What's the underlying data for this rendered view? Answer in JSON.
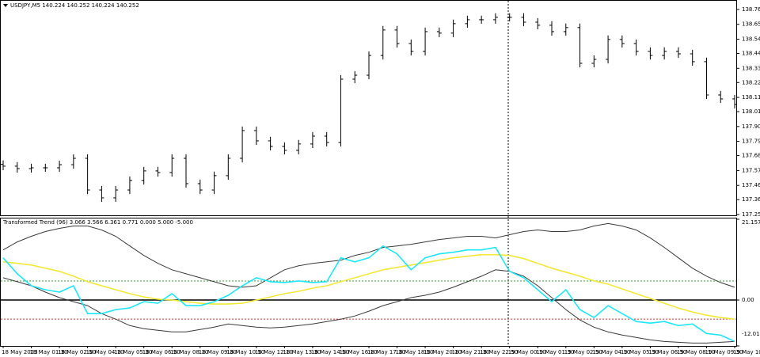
{
  "chart_data": [
    {
      "type": "ohlc",
      "title": "USDJPY,M5  140.224 140.252 140.224 140.252",
      "color": "#000000",
      "categories": [
        "18 May 2023",
        null,
        "18 May 01:30",
        null,
        "18 May 02:50",
        null,
        "18 May 04:10",
        null,
        "18 May 05:30",
        null,
        "18 May 06:50",
        null,
        "18 May 08:10",
        null,
        "18 May 09:30",
        null,
        "18 May 10:50",
        null,
        "18 May 12:10",
        null,
        "18 May 13:30",
        null,
        "18 May 14:50",
        null,
        "18 May 16:10",
        null,
        "18 May 17:30",
        null,
        "18 May 18:50",
        null,
        "18 May 20:10",
        null,
        "18 May 21:30",
        null,
        "18 May 22:50",
        null,
        "19 May 00:10",
        null,
        "19 May 01:30",
        null,
        "19 May 02:50",
        null,
        "19 May 04:10",
        null,
        "19 May 05:30",
        null,
        "19 May 06:50",
        null,
        "19 May 08:10",
        null,
        "19 May 09:30",
        null,
        "19 May 10:"
      ],
      "open": [
        137.62,
        137.607,
        137.589,
        137.595,
        137.595,
        137.618,
        137.665,
        137.431,
        137.373,
        137.431,
        137.501,
        137.572,
        137.56,
        137.665,
        137.478,
        137.431,
        137.537,
        137.665,
        137.87,
        137.794,
        137.753,
        137.724,
        137.771,
        137.829,
        137.782,
        138.25,
        138.279,
        138.425,
        138.613,
        138.513,
        138.455,
        138.601,
        138.59,
        138.66,
        138.689,
        138.689,
        138.707,
        138.707,
        138.671,
        138.648,
        138.601,
        138.631,
        138.367,
        138.396,
        138.543,
        138.513,
        138.455,
        138.425,
        138.455,
        138.437,
        138.379,
        138.133,
        138.104
      ],
      "high": [
        137.65,
        137.637,
        137.625,
        137.625,
        137.648,
        137.695,
        137.695,
        137.461,
        137.461,
        137.531,
        137.602,
        137.602,
        137.695,
        137.695,
        137.508,
        137.567,
        137.695,
        137.9,
        137.9,
        137.824,
        137.783,
        137.801,
        137.859,
        137.859,
        138.28,
        138.309,
        138.455,
        138.643,
        138.643,
        138.543,
        138.631,
        138.631,
        138.69,
        138.719,
        138.719,
        138.737,
        138.737,
        138.737,
        138.701,
        138.678,
        138.661,
        138.661,
        138.426,
        138.573,
        138.573,
        138.543,
        138.485,
        138.485,
        138.485,
        138.467,
        138.409,
        138.163,
        138.134
      ],
      "low": [
        137.577,
        137.559,
        137.559,
        137.565,
        137.565,
        137.588,
        137.401,
        137.343,
        137.343,
        137.401,
        137.471,
        137.53,
        137.53,
        137.448,
        137.401,
        137.401,
        137.507,
        137.635,
        137.764,
        137.723,
        137.694,
        137.694,
        137.741,
        137.752,
        137.752,
        138.22,
        138.249,
        138.395,
        138.483,
        138.425,
        138.425,
        138.56,
        138.56,
        138.63,
        138.659,
        138.659,
        138.677,
        138.641,
        138.618,
        138.571,
        138.571,
        138.337,
        138.337,
        138.366,
        138.483,
        138.425,
        138.395,
        138.395,
        138.407,
        138.349,
        138.103,
        138.074,
        138.033
      ],
      "close": [
        137.607,
        137.589,
        137.595,
        137.595,
        137.618,
        137.665,
        137.431,
        137.373,
        137.431,
        137.501,
        137.572,
        137.56,
        137.665,
        137.478,
        137.431,
        137.537,
        137.665,
        137.87,
        137.794,
        137.753,
        137.724,
        137.771,
        137.829,
        137.782,
        138.25,
        138.279,
        138.425,
        138.613,
        138.513,
        138.455,
        138.601,
        138.59,
        138.66,
        138.689,
        138.689,
        138.707,
        138.707,
        138.671,
        138.648,
        138.601,
        138.631,
        138.367,
        138.396,
        138.543,
        138.513,
        138.455,
        138.425,
        138.455,
        138.437,
        138.379,
        138.133,
        138.104,
        138.063
      ],
      "ylim": [
        137.244,
        138.823
      ],
      "yticks": [
        138.765,
        138.655,
        138.545,
        {
          "value": 138.44,
          "label": "138.440"
        },
        {
          "value": 138.33,
          "label": "138.330"
        },
        138.225,
        138.115,
        {
          "value": 138.01,
          "label": "138.010"
        },
        {
          "value": 137.9,
          "label": "137.900"
        },
        {
          "value": 137.79,
          "label": "137.790"
        },
        137.685,
        137.575,
        137.465,
        {
          "value": 137.36,
          "label": "137.360"
        },
        {
          "value": 137.25,
          "label": "137.250"
        }
      ]
    },
    {
      "type": "line",
      "title": "Transformed Trend (96) 3.066 3.566 6.361 0.771 0.000 5.000 -5.000",
      "series": [
        {
          "color": "#3a3a3a",
          "values": [
            13.14,
            15.23,
            16.69,
            17.94,
            18.77,
            19.4,
            19.4,
            18.36,
            16.69,
            14.18,
            11.68,
            9.6,
            7.93,
            6.88,
            5.84,
            4.8,
            3.75,
            3.34,
            3.75,
            5.84,
            7.93,
            8.97,
            9.6,
            10.01,
            10.43,
            11.68,
            12.52,
            13.77,
            14.18,
            14.6,
            15.23,
            15.85,
            16.27,
            16.69,
            16.69,
            16.27,
            17.11,
            17.94,
            18.36,
            17.94,
            17.94,
            18.36,
            19.4,
            20.03,
            19.4,
            18.36,
            16.27,
            13.77,
            11.06,
            8.34,
            6.26,
            4.59,
            3.34
          ]
        },
        {
          "color": "#3a3a3a",
          "values": [
            5.84,
            4.8,
            3.75,
            2.09,
            0.63,
            -0.42,
            -1.46,
            -3.55,
            -5.01,
            -6.68,
            -7.51,
            -7.93,
            -8.34,
            -8.34,
            -7.72,
            -7.09,
            -6.26,
            -6.68,
            -7.09,
            -7.3,
            -7.09,
            -6.68,
            -6.26,
            -5.63,
            -5.01,
            -4.17,
            -2.92,
            -1.46,
            -0.42,
            0.63,
            1.25,
            2.09,
            3.34,
            4.8,
            6.26,
            7.93,
            7.51,
            6.26,
            3.75,
            0.63,
            -2.5,
            -5.22,
            -7.09,
            -8.34,
            -9.18,
            -9.8,
            -10.43,
            -10.85,
            -11.06,
            -11.26,
            -11.26,
            -11.06,
            -10.85
          ]
        },
        {
          "color": "#f2e83a",
          "values": [
            10.01,
            9.6,
            9.18,
            8.34,
            7.51,
            6.26,
            4.8,
            3.75,
            2.71,
            1.67,
            0.83,
            0.21,
            0.0,
            -0.42,
            -0.83,
            -1.04,
            -1.04,
            -0.83,
            0.0,
            0.83,
            1.67,
            2.29,
            3.13,
            3.75,
            4.8,
            5.84,
            6.88,
            7.93,
            8.55,
            9.18,
            9.8,
            10.43,
            11.06,
            11.47,
            11.89,
            11.89,
            11.68,
            10.85,
            9.6,
            8.34,
            7.3,
            6.26,
            5.01,
            4.17,
            2.92,
            1.67,
            0.42,
            -0.83,
            -2.09,
            -3.13,
            -3.96,
            -4.59,
            -5.01
          ]
        },
        {
          "color": "#1ee6f5",
          "values": [
            11.06,
            6.88,
            3.75,
            2.71,
            2.09,
            3.75,
            -3.55,
            -3.55,
            -2.5,
            -2.09,
            -0.42,
            -0.83,
            1.67,
            -1.46,
            -1.46,
            -0.42,
            1.25,
            3.75,
            5.84,
            4.8,
            4.59,
            5.01,
            4.59,
            4.8,
            11.06,
            10.01,
            11.06,
            14.18,
            12.1,
            7.93,
            11.06,
            12.1,
            12.52,
            13.14,
            13.14,
            13.77,
            7.51,
            5.84,
            2.71,
            -0.42,
            2.71,
            -2.5,
            -4.59,
            -1.46,
            -3.55,
            -5.63,
            -6.05,
            -5.63,
            -6.68,
            -6.26,
            -8.76,
            -9.18,
            -10.85
          ]
        }
      ],
      "levels": [
        {
          "value": 5,
          "color": "#3c9e3c",
          "dash": "2,2"
        },
        {
          "value": 0,
          "color": "#000000",
          "dash": "none"
        },
        {
          "value": -5,
          "color": "#e03030",
          "dash": "2,2"
        }
      ],
      "ylim": [
        -12.012,
        21.157
      ],
      "yticks": [
        21.157,
        {
          "value": 0,
          "label": "0.00"
        },
        -12.012
      ]
    }
  ]
}
